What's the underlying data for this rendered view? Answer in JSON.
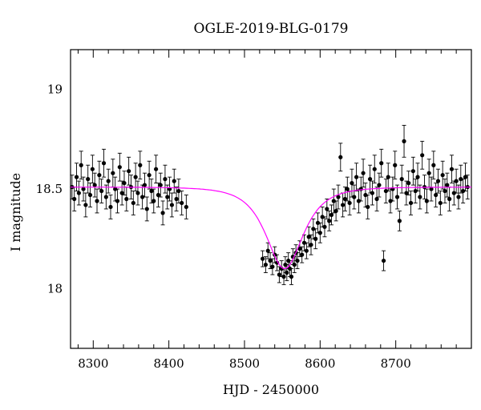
{
  "chart_data": {
    "type": "scatter",
    "title": "OGLE-2019-BLG-0179",
    "xlabel": "HJD - 2450000",
    "ylabel": "I magnitude",
    "xlim": [
      8270,
      8800
    ],
    "ylim": [
      19.2,
      17.7
    ],
    "y_inverted": true,
    "x_major_ticks": [
      8300,
      8400,
      8500,
      8600,
      8700
    ],
    "y_major_ticks": [
      18,
      18.5,
      19
    ],
    "x_tick_labels": [
      "8300",
      "8400",
      "8500",
      "8600",
      "8700"
    ],
    "y_tick_labels": [
      "18",
      "18.5",
      "19"
    ],
    "grid": false,
    "colors": {
      "points": "#000000",
      "model": "#ff00ff",
      "frame": "#000000"
    },
    "series": [
      {
        "type": "scatter_with_errorbars",
        "points": [
          [
            8272,
            18.51,
            0.06
          ],
          [
            8275,
            18.45,
            0.06
          ],
          [
            8278,
            18.56,
            0.07
          ],
          [
            8281,
            18.48,
            0.06
          ],
          [
            8284,
            18.62,
            0.07
          ],
          [
            8287,
            18.5,
            0.06
          ],
          [
            8290,
            18.42,
            0.06
          ],
          [
            8293,
            18.55,
            0.07
          ],
          [
            8296,
            18.47,
            0.06
          ],
          [
            8299,
            18.6,
            0.07
          ],
          [
            8302,
            18.52,
            0.06
          ],
          [
            8305,
            18.44,
            0.06
          ],
          [
            8308,
            18.57,
            0.07
          ],
          [
            8311,
            18.49,
            0.06
          ],
          [
            8314,
            18.63,
            0.07
          ],
          [
            8317,
            18.46,
            0.06
          ],
          [
            8320,
            18.54,
            0.06
          ],
          [
            8323,
            18.41,
            0.06
          ],
          [
            8326,
            18.58,
            0.07
          ],
          [
            8329,
            18.5,
            0.06
          ],
          [
            8332,
            18.44,
            0.06
          ],
          [
            8335,
            18.61,
            0.07
          ],
          [
            8338,
            18.48,
            0.06
          ],
          [
            8341,
            18.53,
            0.06
          ],
          [
            8344,
            18.45,
            0.06
          ],
          [
            8347,
            18.59,
            0.07
          ],
          [
            8350,
            18.51,
            0.06
          ],
          [
            8353,
            18.43,
            0.06
          ],
          [
            8356,
            18.56,
            0.07
          ],
          [
            8359,
            18.48,
            0.06
          ],
          [
            8362,
            18.62,
            0.07
          ],
          [
            8365,
            18.46,
            0.06
          ],
          [
            8368,
            18.52,
            0.06
          ],
          [
            8371,
            18.4,
            0.06
          ],
          [
            8374,
            18.57,
            0.07
          ],
          [
            8377,
            18.49,
            0.06
          ],
          [
            8380,
            18.44,
            0.06
          ],
          [
            8383,
            18.6,
            0.07
          ],
          [
            8386,
            18.47,
            0.06
          ],
          [
            8389,
            18.52,
            0.06
          ],
          [
            8392,
            18.38,
            0.06
          ],
          [
            8395,
            18.55,
            0.07
          ],
          [
            8398,
            18.46,
            0.06
          ],
          [
            8401,
            18.5,
            0.06
          ],
          [
            8404,
            18.42,
            0.06
          ],
          [
            8407,
            18.54,
            0.06
          ],
          [
            8410,
            18.45,
            0.06
          ],
          [
            8413,
            18.49,
            0.06
          ],
          [
            8417,
            18.43,
            0.06
          ],
          [
            8423,
            18.41,
            0.06
          ],
          [
            8524,
            18.15,
            0.04
          ],
          [
            8528,
            18.12,
            0.04
          ],
          [
            8531,
            18.19,
            0.04
          ],
          [
            8534,
            18.14,
            0.04
          ],
          [
            8537,
            18.11,
            0.04
          ],
          [
            8540,
            18.17,
            0.04
          ],
          [
            8543,
            18.13,
            0.04
          ],
          [
            8546,
            18.07,
            0.04
          ],
          [
            8549,
            18.1,
            0.04
          ],
          [
            8552,
            18.06,
            0.04
          ],
          [
            8554,
            18.12,
            0.04
          ],
          [
            8556,
            18.08,
            0.04
          ],
          [
            8558,
            18.14,
            0.04
          ],
          [
            8560,
            18.1,
            0.04
          ],
          [
            8562,
            18.06,
            0.04
          ],
          [
            8564,
            18.16,
            0.04
          ],
          [
            8566,
            18.12,
            0.04
          ],
          [
            8568,
            18.18,
            0.04
          ],
          [
            8570,
            18.14,
            0.04
          ],
          [
            8573,
            18.2,
            0.04
          ],
          [
            8576,
            18.17,
            0.04
          ],
          [
            8579,
            18.23,
            0.04
          ],
          [
            8582,
            18.19,
            0.04
          ],
          [
            8585,
            18.26,
            0.05
          ],
          [
            8588,
            18.22,
            0.05
          ],
          [
            8591,
            18.3,
            0.05
          ],
          [
            8594,
            18.25,
            0.05
          ],
          [
            8597,
            18.33,
            0.05
          ],
          [
            8600,
            18.28,
            0.05
          ],
          [
            8603,
            18.36,
            0.05
          ],
          [
            8606,
            18.31,
            0.05
          ],
          [
            8609,
            18.4,
            0.05
          ],
          [
            8612,
            18.34,
            0.05
          ],
          [
            8615,
            18.37,
            0.05
          ],
          [
            8618,
            18.44,
            0.06
          ],
          [
            8621,
            18.39,
            0.05
          ],
          [
            8624,
            18.46,
            0.06
          ],
          [
            8627,
            18.66,
            0.07
          ],
          [
            8630,
            18.42,
            0.06
          ],
          [
            8633,
            18.45,
            0.06
          ],
          [
            8636,
            18.5,
            0.06
          ],
          [
            8639,
            18.43,
            0.06
          ],
          [
            8642,
            18.53,
            0.07
          ],
          [
            8645,
            18.46,
            0.06
          ],
          [
            8648,
            18.56,
            0.07
          ],
          [
            8651,
            18.44,
            0.06
          ],
          [
            8654,
            18.5,
            0.06
          ],
          [
            8657,
            18.58,
            0.07
          ],
          [
            8660,
            18.47,
            0.06
          ],
          [
            8663,
            18.41,
            0.06
          ],
          [
            8666,
            18.55,
            0.07
          ],
          [
            8669,
            18.48,
            0.06
          ],
          [
            8672,
            18.6,
            0.07
          ],
          [
            8675,
            18.45,
            0.06
          ],
          [
            8678,
            18.52,
            0.06
          ],
          [
            8681,
            18.63,
            0.07
          ],
          [
            8684,
            18.14,
            0.05
          ],
          [
            8687,
            18.49,
            0.06
          ],
          [
            8690,
            18.56,
            0.07
          ],
          [
            8693,
            18.44,
            0.06
          ],
          [
            8696,
            18.5,
            0.06
          ],
          [
            8699,
            18.62,
            0.07
          ],
          [
            8702,
            18.46,
            0.06
          ],
          [
            8705,
            18.34,
            0.05
          ],
          [
            8708,
            18.55,
            0.07
          ],
          [
            8711,
            18.74,
            0.08
          ],
          [
            8714,
            18.48,
            0.06
          ],
          [
            8717,
            18.53,
            0.06
          ],
          [
            8720,
            18.43,
            0.06
          ],
          [
            8723,
            18.59,
            0.07
          ],
          [
            8726,
            18.49,
            0.06
          ],
          [
            8729,
            18.56,
            0.07
          ],
          [
            8732,
            18.46,
            0.06
          ],
          [
            8735,
            18.67,
            0.07
          ],
          [
            8738,
            18.51,
            0.06
          ],
          [
            8741,
            18.44,
            0.06
          ],
          [
            8744,
            18.58,
            0.07
          ],
          [
            8747,
            18.5,
            0.06
          ],
          [
            8750,
            18.62,
            0.07
          ],
          [
            8753,
            18.47,
            0.06
          ],
          [
            8756,
            18.54,
            0.06
          ],
          [
            8759,
            18.43,
            0.06
          ],
          [
            8762,
            18.57,
            0.07
          ],
          [
            8765,
            18.49,
            0.06
          ],
          [
            8768,
            18.52,
            0.06
          ],
          [
            8771,
            18.45,
            0.06
          ],
          [
            8774,
            18.6,
            0.07
          ],
          [
            8777,
            18.48,
            0.06
          ],
          [
            8780,
            18.54,
            0.06
          ],
          [
            8783,
            18.46,
            0.06
          ],
          [
            8786,
            18.55,
            0.07
          ],
          [
            8789,
            18.49,
            0.06
          ],
          [
            8792,
            18.56,
            0.07
          ],
          [
            8795,
            18.51,
            0.06
          ]
        ]
      },
      {
        "type": "line",
        "model": {
          "t0": 8553,
          "baseline": 18.51,
          "peak": 18.1,
          "tE": 32
        }
      }
    ]
  }
}
